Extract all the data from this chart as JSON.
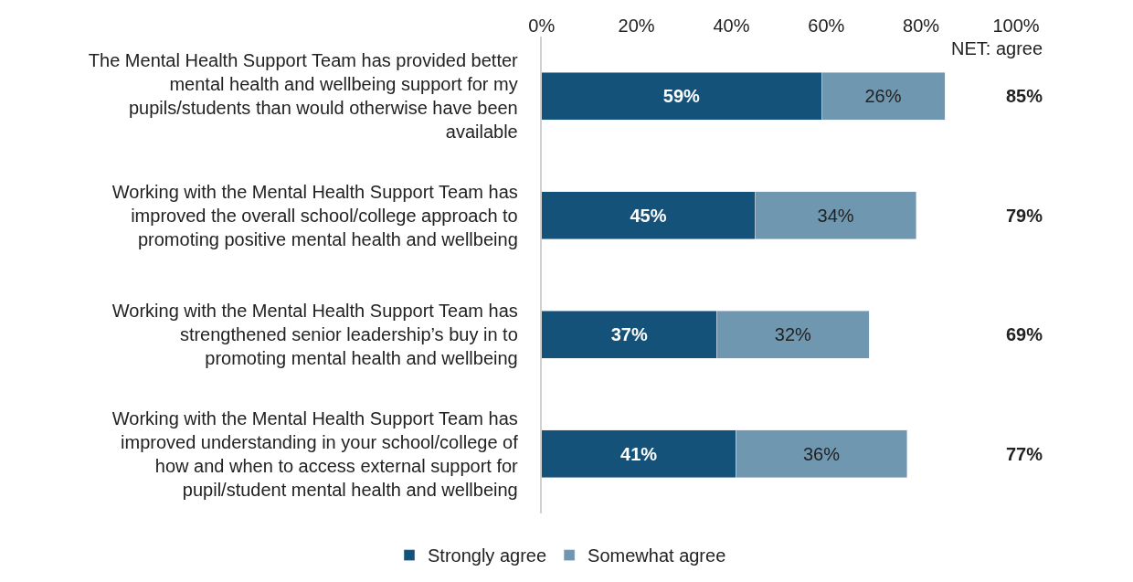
{
  "chart_data": {
    "type": "bar",
    "orientation": "horizontal",
    "stacked": true,
    "categories": [
      "The Mental Health Support Team has provided better mental health and wellbeing support for my pupils/students than would otherwise have been available",
      "Working with the Mental Health Support Team has improved the overall school/college approach to promoting positive mental health and wellbeing",
      "Working with the Mental Health Support Team has strengthened senior leadership’s buy in to promoting mental health and wellbeing",
      "Working with the Mental Health Support Team has improved understanding in your school/college of how and when to access external support for pupil/student mental health and wellbeing"
    ],
    "series": [
      {
        "name": "Strongly agree",
        "color": "#14527a",
        "values": [
          59,
          45,
          37,
          41
        ],
        "value_labels": [
          "59%",
          "45%",
          "37%",
          "41%"
        ]
      },
      {
        "name": "Somewhat agree",
        "color": "#7097b0",
        "values": [
          26,
          34,
          32,
          36
        ],
        "value_labels": [
          "26%",
          "34%",
          "32%",
          "36%"
        ]
      }
    ],
    "xlim": [
      0,
      100
    ],
    "xticks": [
      {
        "value": 0,
        "label": "0%"
      },
      {
        "value": 20,
        "label": "20%"
      },
      {
        "value": 40,
        "label": "40%"
      },
      {
        "value": 60,
        "label": "60%"
      },
      {
        "value": 80,
        "label": "80%"
      },
      {
        "value": 100,
        "label": "100%"
      }
    ],
    "annotations": [
      "NET: agree",
      "85%",
      "79%",
      "69%",
      "77%"
    ],
    "legend": "bottom"
  }
}
